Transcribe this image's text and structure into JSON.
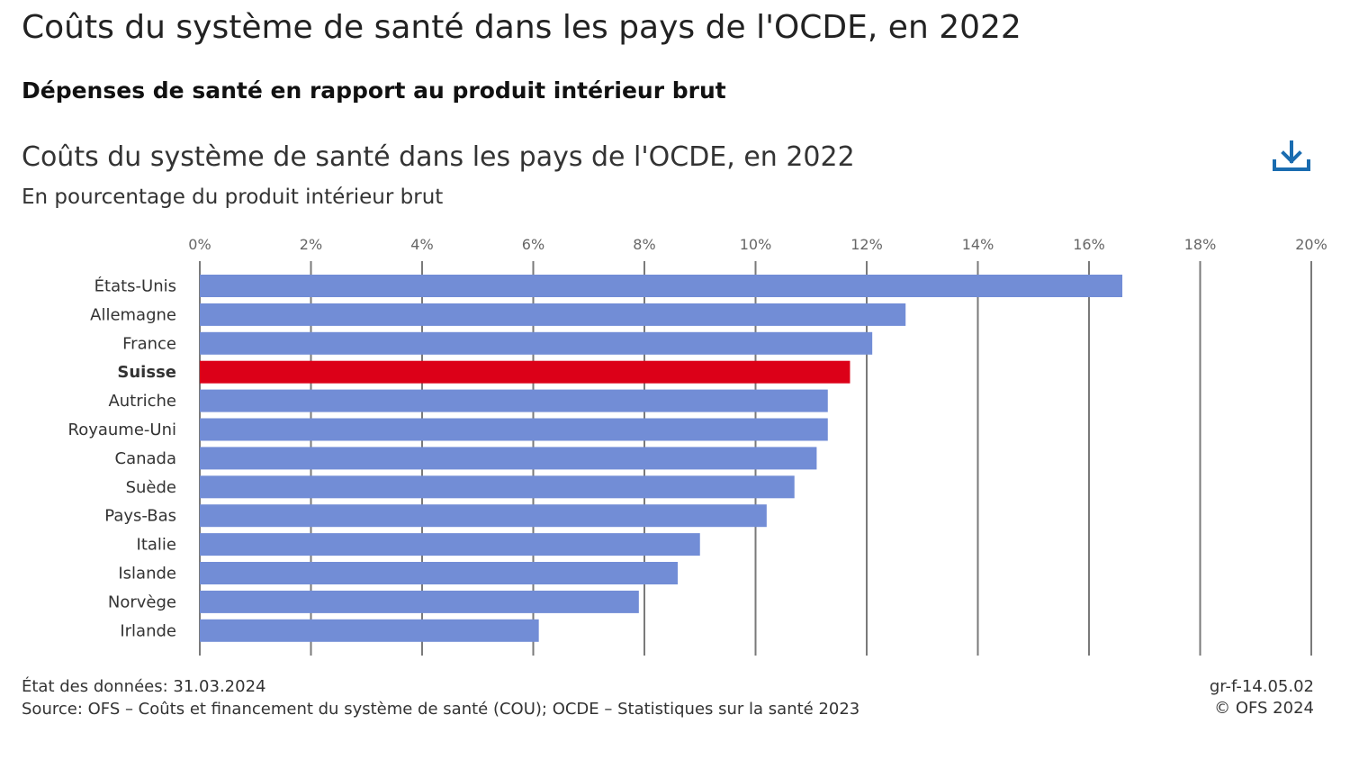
{
  "page": {
    "title": "Coûts du système de santé dans les pays de l'OCDE, en 2022",
    "subtitle": "Dépenses de santé en rapport au produit intérieur brut"
  },
  "chart_header": {
    "title": "Coûts du système de santé dans les pays de l'OCDE, en 2022",
    "subtitle": "En pourcentage du produit intérieur brut",
    "download_icon": "download-icon"
  },
  "footer": {
    "data_state": "État des données: 31.03.2024",
    "source": "Source: OFS – Coûts et financement du système de santé (COU); OCDE – Statistiques sur la santé 2023",
    "code": "gr-f-14.05.02",
    "copyright": "© OFS 2024"
  },
  "chart_data": {
    "type": "bar",
    "orientation": "horizontal",
    "title": "Coûts du système de santé dans les pays de l'OCDE, en 2022",
    "subtitle": "En pourcentage du produit intérieur brut",
    "categories": [
      "États-Unis",
      "Allemagne",
      "France",
      "Suisse",
      "Autriche",
      "Royaume-Uni",
      "Canada",
      "Suède",
      "Pays-Bas",
      "Italie",
      "Islande",
      "Norvège",
      "Irlande"
    ],
    "values": [
      16.6,
      12.7,
      12.1,
      11.7,
      11.3,
      11.3,
      11.1,
      10.7,
      10.2,
      9.0,
      8.6,
      7.9,
      6.1
    ],
    "highlight": "Suisse",
    "xlim": [
      0,
      20
    ],
    "xticks": [
      "0%",
      "2%",
      "4%",
      "6%",
      "8%",
      "10%",
      "12%",
      "14%",
      "16%",
      "18%",
      "20%"
    ],
    "tick_values": [
      0,
      2,
      4,
      6,
      8,
      10,
      12,
      14,
      16,
      18,
      20
    ],
    "grid": true,
    "axis_position": "top",
    "colors": {
      "bar": "#728dd6",
      "highlight": "#dc0018",
      "grid": "#7a7a7a"
    }
  }
}
